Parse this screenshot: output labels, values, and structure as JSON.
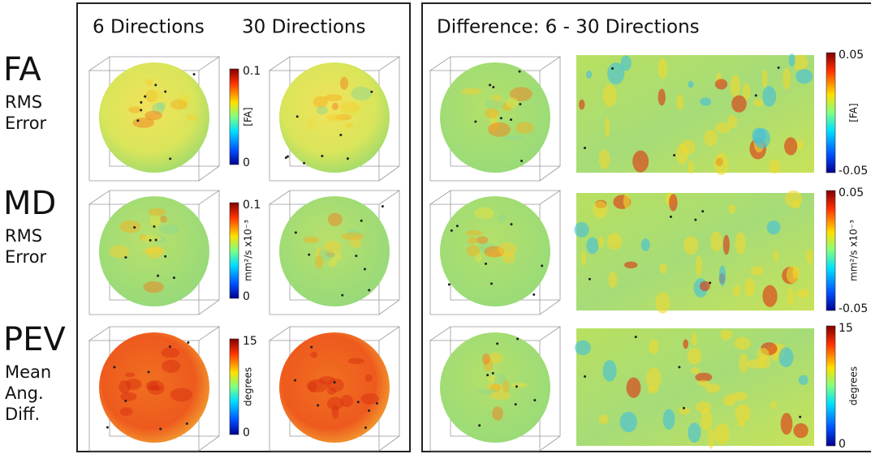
{
  "header": {
    "col_6": "6 Directions",
    "col_30": "30 Directions",
    "difference": "Difference: 6 - 30 Directions"
  },
  "rows": [
    {
      "label": "FA",
      "sublabel": [
        "RMS",
        "Error"
      ],
      "left_scale": {
        "max": 0.1,
        "unit": "[FA]",
        "min": 0
      },
      "right_scale": {
        "max": 0.05,
        "unit": "[FA]",
        "min": -0.05
      }
    },
    {
      "label": "MD",
      "sublabel": [
        "RMS",
        "Error"
      ],
      "left_scale": {
        "max": 0.1,
        "unit": "mm²/s x10⁻³",
        "min": 0
      },
      "right_scale": {
        "max": 0.05,
        "unit": "mm²/s x10⁻³",
        "min": -0.05
      }
    },
    {
      "label": "PEV",
      "sublabel": [
        "Mean",
        "Ang.",
        "Diff."
      ],
      "left_scale": {
        "max": 15,
        "unit": "degrees",
        "min": 0
      },
      "right_scale": {
        "max": 15,
        "unit": "degrees",
        "min": 0
      }
    }
  ]
}
